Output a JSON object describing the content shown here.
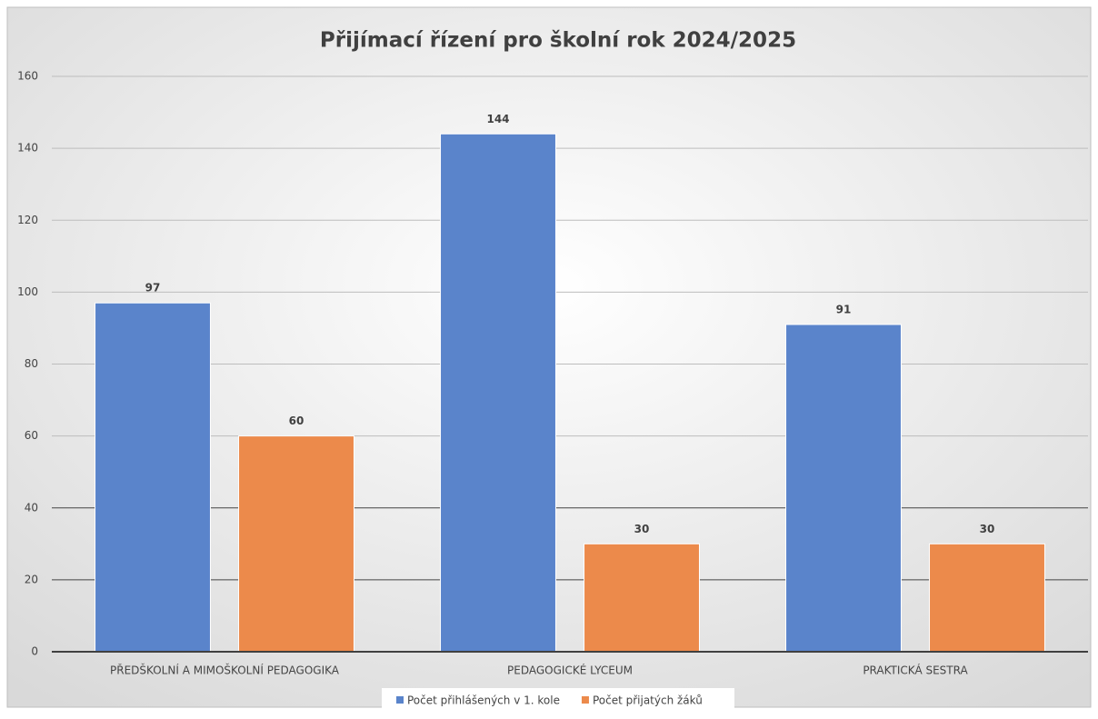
{
  "chart_data": {
    "type": "bar",
    "title": "Přijímací řízení pro školní rok 2024/2025",
    "categories": [
      "PŘEDŠKOLNÍ A MIMOŠKOLNÍ PEDAGOGIKA",
      "PEDAGOGICKÉ LYCEUM",
      "PRAKTICKÁ SESTRA"
    ],
    "series": [
      {
        "name": "Počet přihlášených v 1. kole",
        "color": "#5a84cb",
        "values": [
          97,
          144,
          91
        ]
      },
      {
        "name": "Počet přijatých žáků",
        "color": "#ec8a4b",
        "values": [
          60,
          30,
          30
        ]
      }
    ],
    "ylim": [
      0,
      160
    ],
    "yticks": [
      0,
      20,
      40,
      60,
      80,
      100,
      120,
      140,
      160
    ],
    "grid": true,
    "legend": "bottom"
  }
}
